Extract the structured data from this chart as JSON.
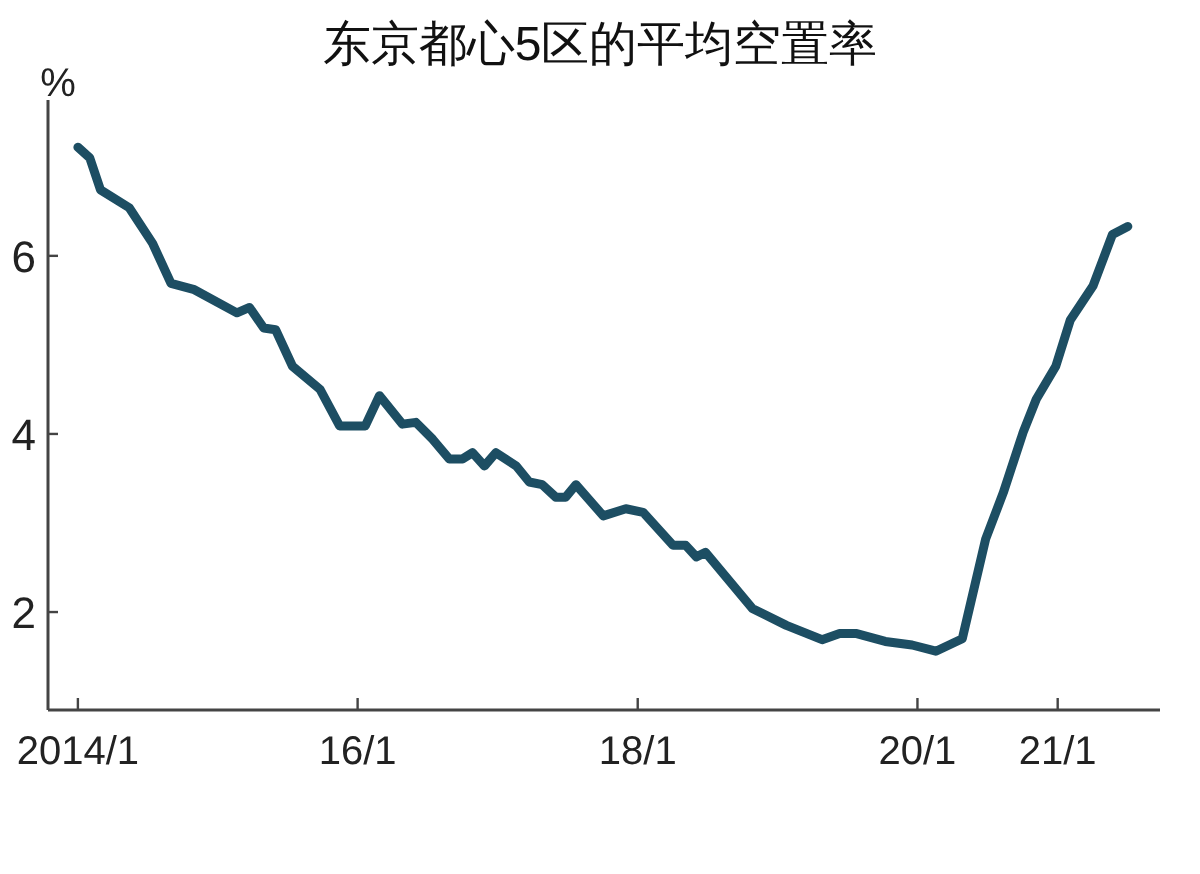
{
  "chart_data": {
    "type": "line",
    "title": "东京都心5区的平均空置率",
    "ylabel": "%",
    "x": [
      "2014-01-01",
      "2014-02-01",
      "2014-03-01",
      "2014-05-15",
      "2014-07-15",
      "2014-09-01",
      "2014-11-01",
      "2015-02-20",
      "2015-03-25",
      "2015-05-01",
      "2015-06-01",
      "2015-07-15",
      "2015-09-25",
      "2015-11-15",
      "2016-01-21",
      "2016-02-27",
      "2016-04-27",
      "2016-06-01",
      "2016-07-15",
      "2016-08-27",
      "2016-10-01",
      "2016-10-27",
      "2016-11-27",
      "2016-12-27",
      "2017-02-18",
      "2017-03-24",
      "2017-04-27",
      "2017-06-01",
      "2017-06-27",
      "2017-07-24",
      "2017-10-03",
      "2017-12-01",
      "2018-01-15",
      "2018-04-03",
      "2018-05-06",
      "2018-06-03",
      "2018-06-27",
      "2018-10-27",
      "2019-01-24",
      "2019-04-27",
      "2019-06-12",
      "2019-07-24",
      "2019-10-09",
      "2019-12-18",
      "2020-02-18",
      "2020-04-27",
      "2020-06-27",
      "2020-08-12",
      "2020-10-03",
      "2020-11-06",
      "2020-12-27",
      "2021-02-03",
      "2021-04-03",
      "2021-05-24",
      "2021-07-03"
    ],
    "series": [
      {
        "color": "#1d4e63",
        "values": [
          7.22,
          7.1,
          6.74,
          6.54,
          6.14,
          5.69,
          5.62,
          5.36,
          5.42,
          5.19,
          5.17,
          4.76,
          4.5,
          4.09,
          4.09,
          4.43,
          4.11,
          4.13,
          3.94,
          3.72,
          3.72,
          3.79,
          3.64,
          3.79,
          3.64,
          3.46,
          3.43,
          3.29,
          3.29,
          3.43,
          3.08,
          3.16,
          3.12,
          2.75,
          2.75,
          2.62,
          2.67,
          2.04,
          1.85,
          1.69,
          1.76,
          1.76,
          1.67,
          1.63,
          1.56,
          1.7,
          2.82,
          3.34,
          4.02,
          4.39,
          4.76,
          5.28,
          5.66,
          6.24,
          6.33
        ]
      }
    ],
    "xlim": [
      "2013-10-15",
      "2021-09-25"
    ],
    "xticks": [
      {
        "value": "2014-01",
        "label": "2014/1"
      },
      {
        "value": "2016-01",
        "label": "16/1"
      },
      {
        "value": "2018-01",
        "label": "18/1"
      },
      {
        "value": "2020-01",
        "label": "20/1"
      },
      {
        "value": "2021-01",
        "label": "21/1"
      }
    ],
    "ylim": [
      0.9,
      7.75
    ],
    "yticks": [
      2,
      4,
      6
    ],
    "grid": false,
    "marker": "none",
    "line_style": "solid"
  }
}
